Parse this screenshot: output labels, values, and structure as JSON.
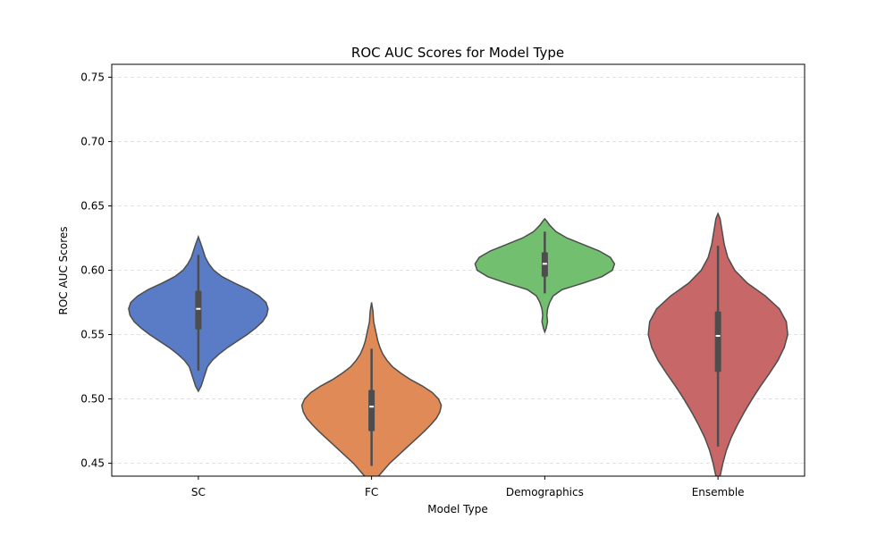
{
  "chart_data": {
    "type": "violin",
    "title": "ROC AUC Scores for Model Type",
    "xlabel": "Model Type",
    "ylabel": "ROC AUC Scores",
    "ylim": [
      0.44,
      0.76
    ],
    "y_ticks": [
      0.45,
      0.5,
      0.55,
      0.6,
      0.65,
      0.7,
      0.75
    ],
    "y_tick_labels": [
      "0.45",
      "0.50",
      "0.55",
      "0.60",
      "0.65",
      "0.70",
      "0.75"
    ],
    "grid": true,
    "categories": [
      "SC",
      "FC",
      "Demographics",
      "Ensemble"
    ],
    "colors": [
      "#5a7bc6",
      "#e08a57",
      "#72c06f",
      "#c86768"
    ],
    "violins": [
      {
        "name": "SC",
        "median": 0.57,
        "q1": 0.554,
        "q3": 0.584,
        "whisker_low": 0.522,
        "whisker_high": 0.612,
        "kde_min": 0.506,
        "kde_max": 0.626,
        "profile": [
          [
            0.506,
            0.0
          ],
          [
            0.51,
            0.04
          ],
          [
            0.515,
            0.07
          ],
          [
            0.52,
            0.1
          ],
          [
            0.525,
            0.13
          ],
          [
            0.53,
            0.2
          ],
          [
            0.535,
            0.3
          ],
          [
            0.54,
            0.42
          ],
          [
            0.545,
            0.56
          ],
          [
            0.55,
            0.7
          ],
          [
            0.555,
            0.82
          ],
          [
            0.56,
            0.92
          ],
          [
            0.565,
            0.98
          ],
          [
            0.57,
            1.0
          ],
          [
            0.575,
            0.97
          ],
          [
            0.58,
            0.87
          ],
          [
            0.585,
            0.72
          ],
          [
            0.59,
            0.52
          ],
          [
            0.595,
            0.34
          ],
          [
            0.6,
            0.22
          ],
          [
            0.605,
            0.15
          ],
          [
            0.61,
            0.1
          ],
          [
            0.615,
            0.07
          ],
          [
            0.62,
            0.04
          ],
          [
            0.626,
            0.0
          ]
        ]
      },
      {
        "name": "FC",
        "median": 0.494,
        "q1": 0.475,
        "q3": 0.507,
        "whisker_low": 0.448,
        "whisker_high": 0.539,
        "kde_min": 0.437,
        "kde_max": 0.575,
        "profile": [
          [
            0.437,
            0.0
          ],
          [
            0.44,
            0.1
          ],
          [
            0.445,
            0.18
          ],
          [
            0.45,
            0.26
          ],
          [
            0.455,
            0.36
          ],
          [
            0.46,
            0.46
          ],
          [
            0.465,
            0.56
          ],
          [
            0.47,
            0.66
          ],
          [
            0.475,
            0.76
          ],
          [
            0.48,
            0.85
          ],
          [
            0.485,
            0.93
          ],
          [
            0.49,
            0.98
          ],
          [
            0.495,
            1.0
          ],
          [
            0.5,
            0.96
          ],
          [
            0.505,
            0.87
          ],
          [
            0.51,
            0.73
          ],
          [
            0.515,
            0.56
          ],
          [
            0.52,
            0.42
          ],
          [
            0.525,
            0.3
          ],
          [
            0.53,
            0.22
          ],
          [
            0.535,
            0.16
          ],
          [
            0.54,
            0.12
          ],
          [
            0.545,
            0.09
          ],
          [
            0.55,
            0.07
          ],
          [
            0.555,
            0.05
          ],
          [
            0.56,
            0.03
          ],
          [
            0.568,
            0.02
          ],
          [
            0.575,
            0.0
          ]
        ]
      },
      {
        "name": "Demographics",
        "median": 0.605,
        "q1": 0.595,
        "q3": 0.614,
        "whisker_low": 0.582,
        "whisker_high": 0.63,
        "kde_min": 0.552,
        "kde_max": 0.64,
        "profile": [
          [
            0.552,
            0.0
          ],
          [
            0.555,
            0.02
          ],
          [
            0.56,
            0.04
          ],
          [
            0.565,
            0.03
          ],
          [
            0.57,
            0.04
          ],
          [
            0.575,
            0.07
          ],
          [
            0.58,
            0.12
          ],
          [
            0.585,
            0.25
          ],
          [
            0.59,
            0.55
          ],
          [
            0.595,
            0.82
          ],
          [
            0.6,
            0.97
          ],
          [
            0.605,
            1.0
          ],
          [
            0.61,
            0.94
          ],
          [
            0.615,
            0.78
          ],
          [
            0.62,
            0.55
          ],
          [
            0.625,
            0.32
          ],
          [
            0.63,
            0.16
          ],
          [
            0.635,
            0.07
          ],
          [
            0.638,
            0.03
          ],
          [
            0.64,
            0.0
          ]
        ]
      },
      {
        "name": "Ensemble",
        "median": 0.549,
        "q1": 0.521,
        "q3": 0.568,
        "whisker_low": 0.463,
        "whisker_high": 0.619,
        "kde_min": 0.437,
        "kde_max": 0.644,
        "profile": [
          [
            0.437,
            0.0
          ],
          [
            0.44,
            0.03
          ],
          [
            0.45,
            0.07
          ],
          [
            0.46,
            0.12
          ],
          [
            0.47,
            0.19
          ],
          [
            0.48,
            0.28
          ],
          [
            0.49,
            0.38
          ],
          [
            0.5,
            0.49
          ],
          [
            0.51,
            0.61
          ],
          [
            0.52,
            0.74
          ],
          [
            0.53,
            0.86
          ],
          [
            0.54,
            0.95
          ],
          [
            0.55,
            1.0
          ],
          [
            0.56,
            0.98
          ],
          [
            0.57,
            0.88
          ],
          [
            0.58,
            0.68
          ],
          [
            0.59,
            0.42
          ],
          [
            0.6,
            0.24
          ],
          [
            0.61,
            0.14
          ],
          [
            0.62,
            0.09
          ],
          [
            0.63,
            0.06
          ],
          [
            0.64,
            0.03
          ],
          [
            0.644,
            0.0
          ]
        ]
      }
    ]
  }
}
